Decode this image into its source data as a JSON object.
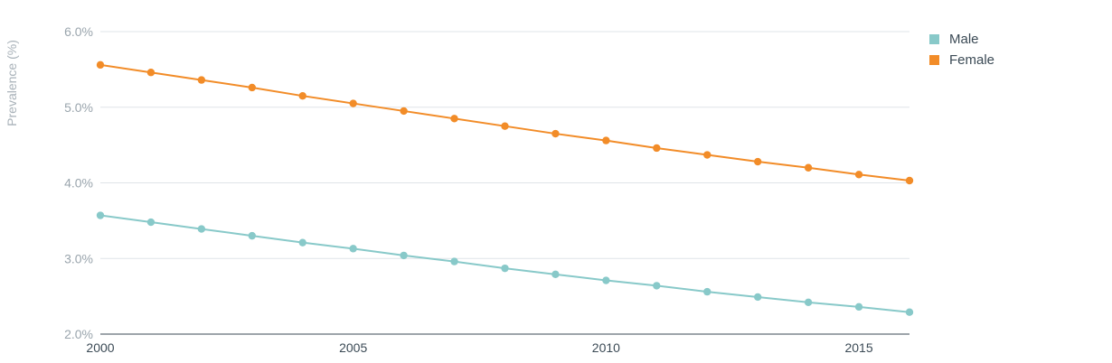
{
  "chart_data": {
    "type": "line",
    "ylabel": "Prevalence (%)",
    "xlabel": "",
    "title": "",
    "ylim": [
      2.0,
      6.0
    ],
    "xlim": [
      2000,
      2016
    ],
    "y_ticks": [
      2.0,
      3.0,
      4.0,
      5.0,
      6.0
    ],
    "y_tick_labels": [
      "2.0%",
      "3.0%",
      "4.0%",
      "5.0%",
      "6.0%"
    ],
    "x_ticks": [
      2000,
      2005,
      2010,
      2015
    ],
    "x_tick_labels": [
      "2000",
      "2005",
      "2010",
      "2015"
    ],
    "grid": "horizontal",
    "legend_position": "top-right",
    "x": [
      2000,
      2001,
      2002,
      2003,
      2004,
      2005,
      2006,
      2007,
      2008,
      2009,
      2010,
      2011,
      2012,
      2013,
      2014,
      2015,
      2016
    ],
    "series": [
      {
        "name": "Male",
        "color": "#88c9c9",
        "values": [
          3.57,
          3.48,
          3.39,
          3.3,
          3.21,
          3.13,
          3.04,
          2.96,
          2.87,
          2.79,
          2.71,
          2.64,
          2.56,
          2.49,
          2.42,
          2.36,
          2.29
        ]
      },
      {
        "name": "Female",
        "color": "#f28c28",
        "values": [
          5.56,
          5.46,
          5.36,
          5.26,
          5.15,
          5.05,
          4.95,
          4.85,
          4.75,
          4.65,
          4.56,
          4.46,
          4.37,
          4.28,
          4.2,
          4.11,
          4.03
        ]
      }
    ]
  }
}
